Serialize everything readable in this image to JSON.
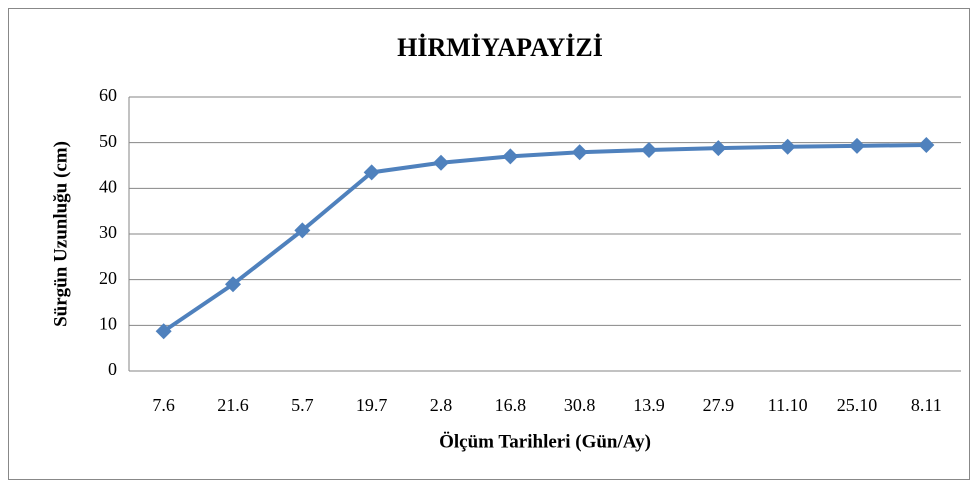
{
  "chart_data": {
    "type": "line",
    "title": "HİRMİYAPAYİZİ",
    "x_label": "Ölçüm Tarihleri (Gün/Ay)",
    "y_label": "Sürgün Uzunluğu (cm)",
    "categories": [
      "7.6",
      "21.6",
      "5.7",
      "19.7",
      "2.8",
      "16.8",
      "30.8",
      "13.9",
      "27.9",
      "11.10",
      "25.10",
      "8.11"
    ],
    "series": [
      {
        "name": "HİRMİYAPAYİZİ",
        "color": "#4f81bd",
        "values": [
          8.7,
          19,
          30.8,
          43.5,
          45.6,
          47,
          47.9,
          48.4,
          48.8,
          49.1,
          49.3,
          49.5
        ]
      }
    ],
    "ylim": [
      0,
      60
    ],
    "yticks": [
      0,
      10,
      20,
      30,
      40,
      50,
      60
    ],
    "grid": true
  }
}
